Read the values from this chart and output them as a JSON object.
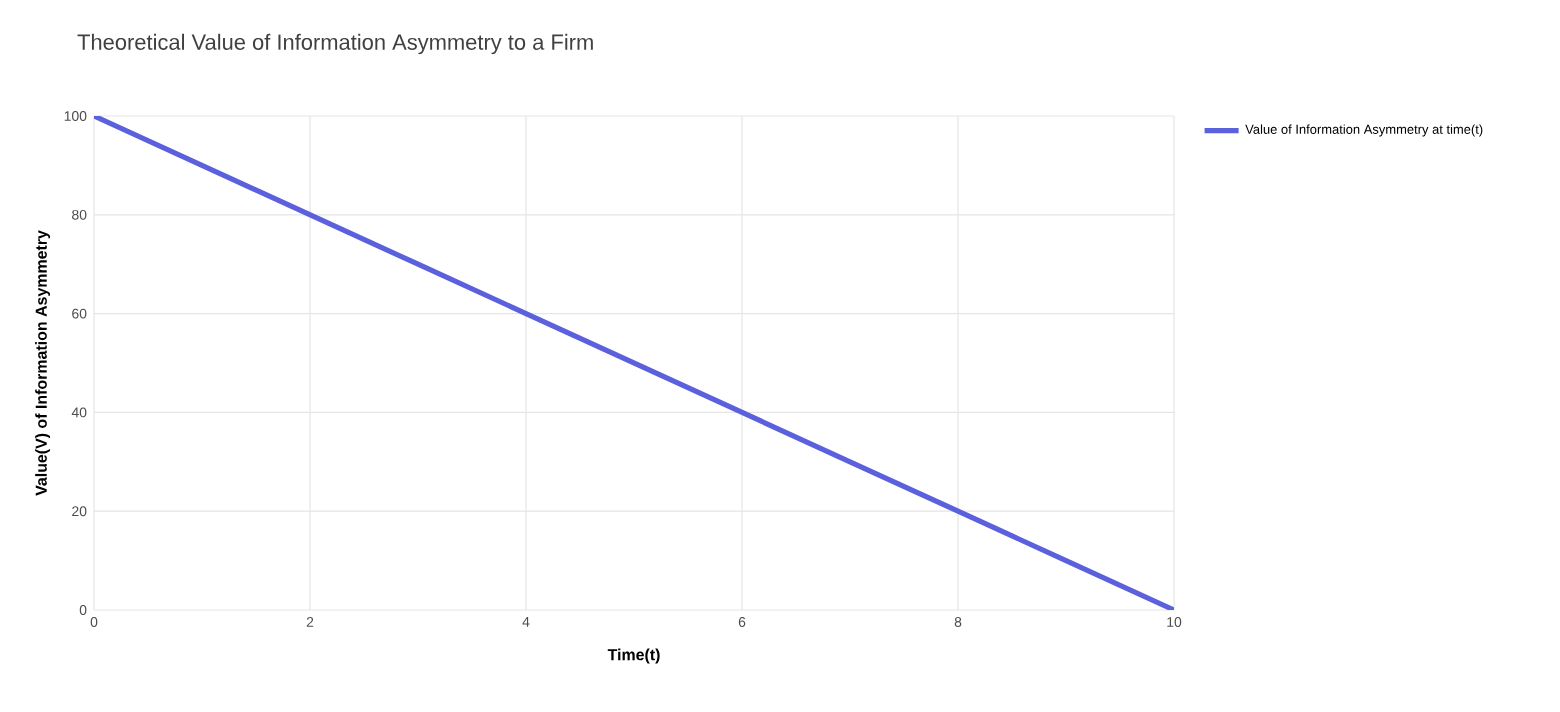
{
  "chart_data": {
    "type": "line",
    "title": "Theoretical Value of Information Asymmetry to a Firm",
    "xlabel": "Time(t)",
    "ylabel": "Value(V) of Information Asymmetry",
    "x": [
      0,
      1,
      2,
      3,
      4,
      5,
      6,
      7,
      8,
      9,
      10
    ],
    "series": [
      {
        "name": "Value of Information Asymmetry at time(t)",
        "color": "#5b60dc",
        "values": [
          100,
          90,
          80,
          70,
          60,
          50,
          40,
          30,
          20,
          10,
          0
        ]
      }
    ],
    "xlim": [
      0,
      10
    ],
    "ylim": [
      0,
      100
    ],
    "xticks": [
      0,
      2,
      4,
      6,
      8,
      10
    ],
    "yticks": [
      0,
      20,
      40,
      60,
      80,
      100
    ],
    "grid": true,
    "legend": "top right",
    "marker": "none",
    "line_style": "solid"
  }
}
